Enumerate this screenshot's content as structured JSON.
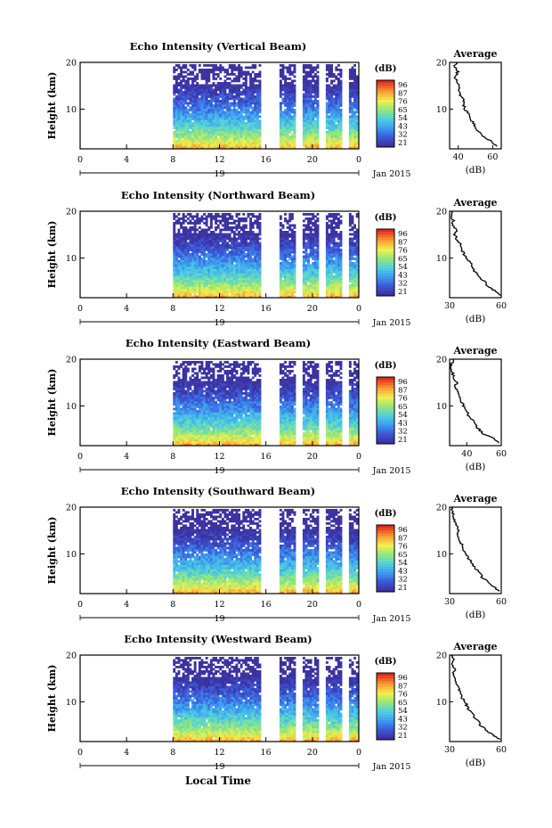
{
  "panels": [
    {
      "title": "Echo Intensity (Vertical Beam)"
    },
    {
      "title": "Echo Intensity (Northward Beam)"
    },
    {
      "title": "Echo Intensity (Eastward Beam)"
    },
    {
      "title": "Echo Intensity (Southward Beam)"
    },
    {
      "title": "Echo Intensity (Westward Beam)"
    }
  ],
  "common": {
    "ylabel": "Height (km)",
    "x_ticks": [
      "0",
      "4",
      "8",
      "12",
      "16",
      "20",
      "0"
    ],
    "y_ticks": [
      "20",
      "10"
    ],
    "day_label": "19",
    "month_label": "Jan 2015",
    "xlabel": "Local Time",
    "colorbar_unit": "(dB)",
    "colorbar_ticks": [
      "96",
      "87",
      "76",
      "65",
      "54",
      "43",
      "32",
      "21"
    ],
    "avg_title": "Average",
    "avg_xlabel": "(dB)"
  },
  "chart_data": [
    {
      "type": "heatmap",
      "title": "Echo Intensity (Vertical Beam)",
      "xlabel": "Local Time",
      "ylabel": "Height (km)",
      "xlim": [
        0,
        24
      ],
      "ylim": [
        1.5,
        20
      ],
      "data_start_hour": 8,
      "gaps_hours": [
        [
          15.5,
          17
        ],
        [
          18.5,
          19
        ],
        [
          20.5,
          21
        ],
        [
          22.5,
          23
        ]
      ],
      "colorbar": {
        "label": "(dB)",
        "ticks": [
          96,
          87,
          76,
          65,
          54,
          43,
          32,
          21
        ]
      },
      "average_profile": {
        "xlim": [
          35,
          65
        ],
        "xticks": [
          40,
          60
        ],
        "yticks": [
          10,
          20
        ],
        "height_km": [
          2,
          3,
          4,
          5,
          6,
          7,
          8,
          9,
          10,
          11,
          12,
          13,
          14,
          15,
          16,
          17,
          18,
          19,
          20
        ],
        "db": [
          62,
          60,
          55,
          52,
          50,
          49,
          47,
          46,
          44,
          43,
          43,
          41,
          40,
          41,
          39,
          38,
          40,
          38,
          39
        ]
      }
    },
    {
      "type": "heatmap",
      "title": "Echo Intensity (Northward Beam)",
      "xlabel": "Local Time",
      "ylabel": "Height (km)",
      "xlim": [
        0,
        24
      ],
      "ylim": [
        1.5,
        20
      ],
      "data_start_hour": 8,
      "gaps_hours": [
        [
          15.5,
          17
        ],
        [
          18.5,
          19
        ],
        [
          20.5,
          21
        ],
        [
          22.5,
          23
        ]
      ],
      "colorbar": {
        "label": "(dB)",
        "ticks": [
          96,
          87,
          76,
          65,
          54,
          43,
          32,
          21
        ]
      },
      "average_profile": {
        "xlim": [
          30,
          60
        ],
        "xticks": [
          30,
          60
        ],
        "yticks": [
          10,
          20
        ],
        "height_km": [
          2,
          3,
          4,
          5,
          6,
          7,
          8,
          9,
          10,
          11,
          12,
          13,
          14,
          15,
          16,
          17,
          18,
          19,
          20
        ],
        "db": [
          59,
          56,
          52,
          50,
          47,
          45,
          43,
          42,
          40,
          38,
          37,
          36,
          34,
          33,
          34,
          32,
          32,
          31,
          31
        ]
      }
    },
    {
      "type": "heatmap",
      "title": "Echo Intensity (Eastward Beam)",
      "xlabel": "Local Time",
      "ylabel": "Height (km)",
      "xlim": [
        0,
        24
      ],
      "ylim": [
        1.5,
        20
      ],
      "data_start_hour": 8,
      "gaps_hours": [
        [
          15.5,
          17
        ],
        [
          18.5,
          19
        ],
        [
          20.5,
          21
        ],
        [
          22.5,
          23
        ]
      ],
      "colorbar": {
        "label": "(dB)",
        "ticks": [
          96,
          87,
          76,
          65,
          54,
          43,
          32,
          21
        ]
      },
      "average_profile": {
        "xlim": [
          30,
          60
        ],
        "xticks": [
          40,
          60
        ],
        "yticks": [
          10,
          20
        ],
        "height_km": [
          2,
          3,
          4,
          5,
          6,
          7,
          8,
          9,
          10,
          11,
          12,
          13,
          14,
          15,
          16,
          17,
          18,
          19,
          20
        ],
        "db": [
          59,
          56,
          50,
          47,
          45,
          43,
          41,
          40,
          38,
          37,
          36,
          35,
          33,
          34,
          32,
          32,
          31,
          31,
          32
        ]
      }
    },
    {
      "type": "heatmap",
      "title": "Echo Intensity (Southward Beam)",
      "xlabel": "Local Time",
      "ylabel": "Height (km)",
      "xlim": [
        0,
        24
      ],
      "ylim": [
        1.5,
        20
      ],
      "data_start_hour": 8,
      "gaps_hours": [
        [
          15.5,
          17
        ],
        [
          18.5,
          19
        ],
        [
          20.5,
          21
        ],
        [
          22.5,
          23
        ]
      ],
      "colorbar": {
        "label": "(dB)",
        "ticks": [
          96,
          87,
          76,
          65,
          54,
          43,
          32,
          21
        ]
      },
      "average_profile": {
        "xlim": [
          30,
          60
        ],
        "xticks": [
          30,
          60
        ],
        "yticks": [
          10,
          20
        ],
        "height_km": [
          2,
          3,
          4,
          5,
          6,
          7,
          8,
          9,
          10,
          11,
          12,
          13,
          14,
          15,
          16,
          17,
          18,
          19,
          20
        ],
        "db": [
          59,
          56,
          52,
          49,
          47,
          45,
          43,
          41,
          40,
          38,
          37,
          36,
          35,
          35,
          34,
          33,
          32,
          32,
          31
        ]
      }
    },
    {
      "type": "heatmap",
      "title": "Echo Intensity (Westward Beam)",
      "xlabel": "Local Time",
      "ylabel": "Height (km)",
      "xlim": [
        0,
        24
      ],
      "ylim": [
        1.5,
        20
      ],
      "data_start_hour": 8,
      "gaps_hours": [
        [
          15.5,
          17
        ],
        [
          18.5,
          19
        ],
        [
          20.5,
          21
        ],
        [
          22.5,
          23
        ]
      ],
      "colorbar": {
        "label": "(dB)",
        "ticks": [
          96,
          87,
          76,
          65,
          54,
          43,
          32,
          21
        ]
      },
      "average_profile": {
        "xlim": [
          30,
          60
        ],
        "xticks": [
          30,
          60
        ],
        "yticks": [
          10,
          20
        ],
        "height_km": [
          2,
          3,
          4,
          5,
          6,
          7,
          8,
          9,
          10,
          11,
          12,
          13,
          14,
          15,
          16,
          17,
          18,
          19,
          20
        ],
        "db": [
          59,
          55,
          51,
          48,
          46,
          44,
          42,
          40,
          39,
          37,
          36,
          35,
          33,
          33,
          32,
          33,
          31,
          32,
          31
        ]
      }
    }
  ]
}
